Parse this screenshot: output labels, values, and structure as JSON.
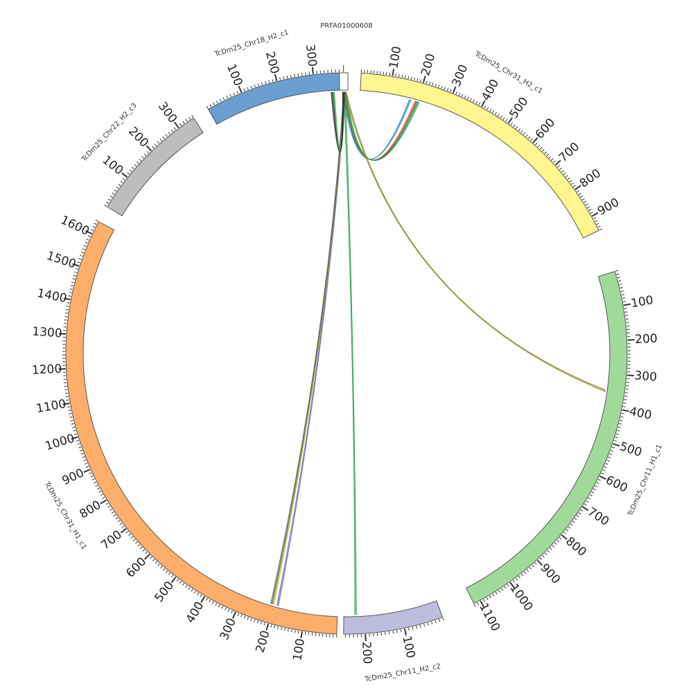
{
  "chart_data": {
    "type": "chord",
    "segments": [
      {
        "name": "PRFA01000608",
        "length": 8,
        "color": "#ffffff",
        "label_side": "top",
        "tick_step": 100,
        "label_step": 100
      },
      {
        "name": "TcDm25_Chr31_H2_c1",
        "length": 950,
        "color": "#fff68f",
        "tick_step": 10,
        "label_step": 100
      },
      {
        "name": "TcDm25_Chr11_H1_c1",
        "length": 1120,
        "color": "#a1d99b",
        "tick_step": 10,
        "label_step": 100
      },
      {
        "name": "TcDm25_Chr11_H2_c2",
        "length": 255,
        "color": "#bcbddc",
        "tick_step": 10,
        "label_step": 100
      },
      {
        "name": "TcDm25_Chr31_H1_c1",
        "length": 1640,
        "color": "#fdae6b",
        "tick_step": 10,
        "label_step": 100
      },
      {
        "name": "TcDm25_Chr22_H2_c3",
        "length": 350,
        "color": "#bdbdbd",
        "tick_step": 10,
        "label_step": 100
      },
      {
        "name": "TcDm25_Chr18_H2_c1",
        "length": 370,
        "color": "#6a9fd0",
        "tick_step": 10,
        "label_step": 100
      }
    ],
    "links": [
      {
        "from": "PRFA01000608",
        "from_pos": 3,
        "to": "TcDm25_Chr31_H2_c1",
        "to_pos": 175,
        "color": "#3182bd"
      },
      {
        "from": "PRFA01000608",
        "from_pos": 4,
        "to": "TcDm25_Chr31_H2_c1",
        "to_pos": 195,
        "color": "#e6550d"
      },
      {
        "from": "PRFA01000608",
        "from_pos": 4,
        "to": "TcDm25_Chr31_H2_c1",
        "to_pos": 200,
        "color": "#636363"
      },
      {
        "from": "PRFA01000608",
        "from_pos": 5,
        "to": "TcDm25_Chr31_H2_c1",
        "to_pos": 205,
        "color": "#31a354"
      },
      {
        "from": "PRFA01000608",
        "from_pos": 5,
        "to": "TcDm25_Chr11_H1_c1",
        "to_pos": 355,
        "color": "#8c8c2d"
      },
      {
        "from": "PRFA01000608",
        "from_pos": 4,
        "to": "TcDm25_Chr11_H2_c2",
        "to_pos": 225,
        "color": "#31a354"
      },
      {
        "from": "PRFA01000608",
        "from_pos": 4,
        "to": "TcDm25_Chr31_H1_c1",
        "to_pos": 190,
        "color": "#756bb1"
      },
      {
        "from": "PRFA01000608",
        "from_pos": 4,
        "to": "TcDm25_Chr31_H1_c1",
        "to_pos": 205,
        "color": "#bcbd22"
      },
      {
        "from": "PRFA01000608",
        "from_pos": 4,
        "to": "TcDm25_Chr31_H1_c1",
        "to_pos": 210,
        "color": "#636363"
      },
      {
        "from": "PRFA01000608",
        "from_pos": 3,
        "to": "TcDm25_Chr18_H2_c1",
        "to_pos": 355,
        "color": "#31a354"
      },
      {
        "from": "PRFA01000608",
        "from_pos": 3,
        "to": "TcDm25_Chr18_H2_c1",
        "to_pos": 350,
        "color": "#222222"
      }
    ]
  }
}
